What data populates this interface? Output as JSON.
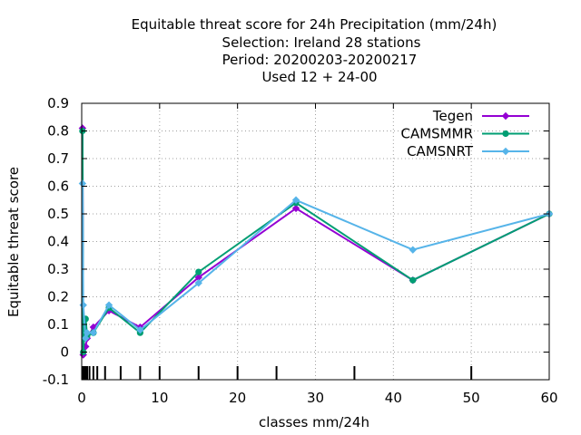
{
  "chart_data": {
    "type": "line",
    "title_lines": [
      "Equitable threat score  for 24h Precipitation (mm/24h)",
      "Selection: Ireland      28 stations",
      "Period: 20200203-20200217",
      "Used  12 + 24-00"
    ],
    "xlabel": "classes mm/24h",
    "ylabel": "Equitable threat score",
    "xlim": [
      0,
      60
    ],
    "ylim": [
      -0.1,
      0.9
    ],
    "xticks": [
      0,
      10,
      20,
      30,
      40,
      50,
      60
    ],
    "yticks": [
      -0.1,
      0,
      0.1,
      0.2,
      0.3,
      0.4,
      0.5,
      0.6,
      0.7,
      0.8,
      0.9
    ],
    "xtick_labels": [
      "0",
      "10",
      "20",
      "30",
      "40",
      "50",
      "60"
    ],
    "ytick_labels": [
      "-0.1",
      "0",
      "0.1",
      "0.2",
      "0.3",
      "0.4",
      "0.5",
      "0.6",
      "0.7",
      "0.8",
      "0.9"
    ],
    "class_marks": [
      0.1,
      0.2,
      0.3,
      0.5,
      0.7,
      1,
      1.5,
      2,
      3,
      5,
      7.5,
      10,
      15,
      20,
      25,
      35,
      50
    ],
    "grid": true,
    "legend_position": "top-right",
    "series": [
      {
        "name": "Tegen",
        "color": "#9400d3",
        "marker": "diamond",
        "points": [
          [
            0.1,
            0.81
          ],
          [
            0.2,
            -0.01
          ],
          [
            0.5,
            0.02
          ],
          [
            0.7,
            0.05
          ],
          [
            1.5,
            0.09
          ],
          [
            3.5,
            0.15
          ],
          [
            7.5,
            0.09
          ],
          [
            15,
            0.27
          ],
          [
            27.5,
            0.52
          ],
          [
            42.5,
            0.26
          ],
          [
            60,
            0.5
          ]
        ]
      },
      {
        "name": "CAMSMMR",
        "color": "#009e73",
        "marker": "circle",
        "points": [
          [
            0.1,
            0.8
          ],
          [
            0.2,
            0.0
          ],
          [
            0.5,
            0.12
          ],
          [
            0.7,
            0.06
          ],
          [
            1.5,
            0.07
          ],
          [
            3.5,
            0.16
          ],
          [
            7.5,
            0.07
          ],
          [
            15,
            0.29
          ],
          [
            27.5,
            0.54
          ],
          [
            42.5,
            0.26
          ],
          [
            60,
            0.5
          ]
        ]
      },
      {
        "name": "CAMSNRT",
        "color": "#56b4e9",
        "marker": "diamond",
        "points": [
          [
            0.1,
            0.61
          ],
          [
            0.2,
            0.17
          ],
          [
            0.5,
            0.05
          ],
          [
            0.7,
            0.07
          ],
          [
            1.5,
            0.07
          ],
          [
            3.5,
            0.17
          ],
          [
            7.5,
            0.08
          ],
          [
            15,
            0.25
          ],
          [
            27.5,
            0.55
          ],
          [
            42.5,
            0.37
          ],
          [
            60,
            0.5
          ]
        ]
      }
    ]
  }
}
